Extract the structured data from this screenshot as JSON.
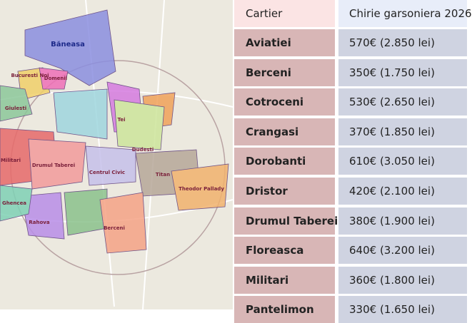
{
  "map": {
    "labels": [
      "Băneasa",
      "Bucuresti Noi",
      "Domenii",
      "Giulesti",
      "Tei",
      "Militari",
      "Drumul Taberei",
      "Centrul Civic",
      "Titan",
      "Theodor Pallady",
      "Rahova",
      "Berceni",
      "Ghencea",
      "Dudesti"
    ]
  },
  "table": {
    "header": [
      "Cartier",
      "Chirie garsoniera 2026"
    ],
    "rows": [
      [
        "Aviatiei",
        "570€ (2.850 lei)"
      ],
      [
        "Berceni",
        "350€ (1.750 lei)"
      ],
      [
        "Cotroceni",
        "530€ (2.650 lei)"
      ],
      [
        "Crangasi",
        "370€ (1.850 lei)"
      ],
      [
        "Dorobanti",
        "610€ (3.050 lei)"
      ],
      [
        "Dristor",
        "420€ (2.100 lei)"
      ],
      [
        "Drumul Taberei",
        "380€ (1.900 lei)"
      ],
      [
        "Floreasca",
        "640€ (3.200 lei)"
      ],
      [
        "Militari",
        "360€ (1.800 lei)"
      ],
      [
        "Pantelimon",
        "330€ (1.650 lei)"
      ]
    ]
  }
}
